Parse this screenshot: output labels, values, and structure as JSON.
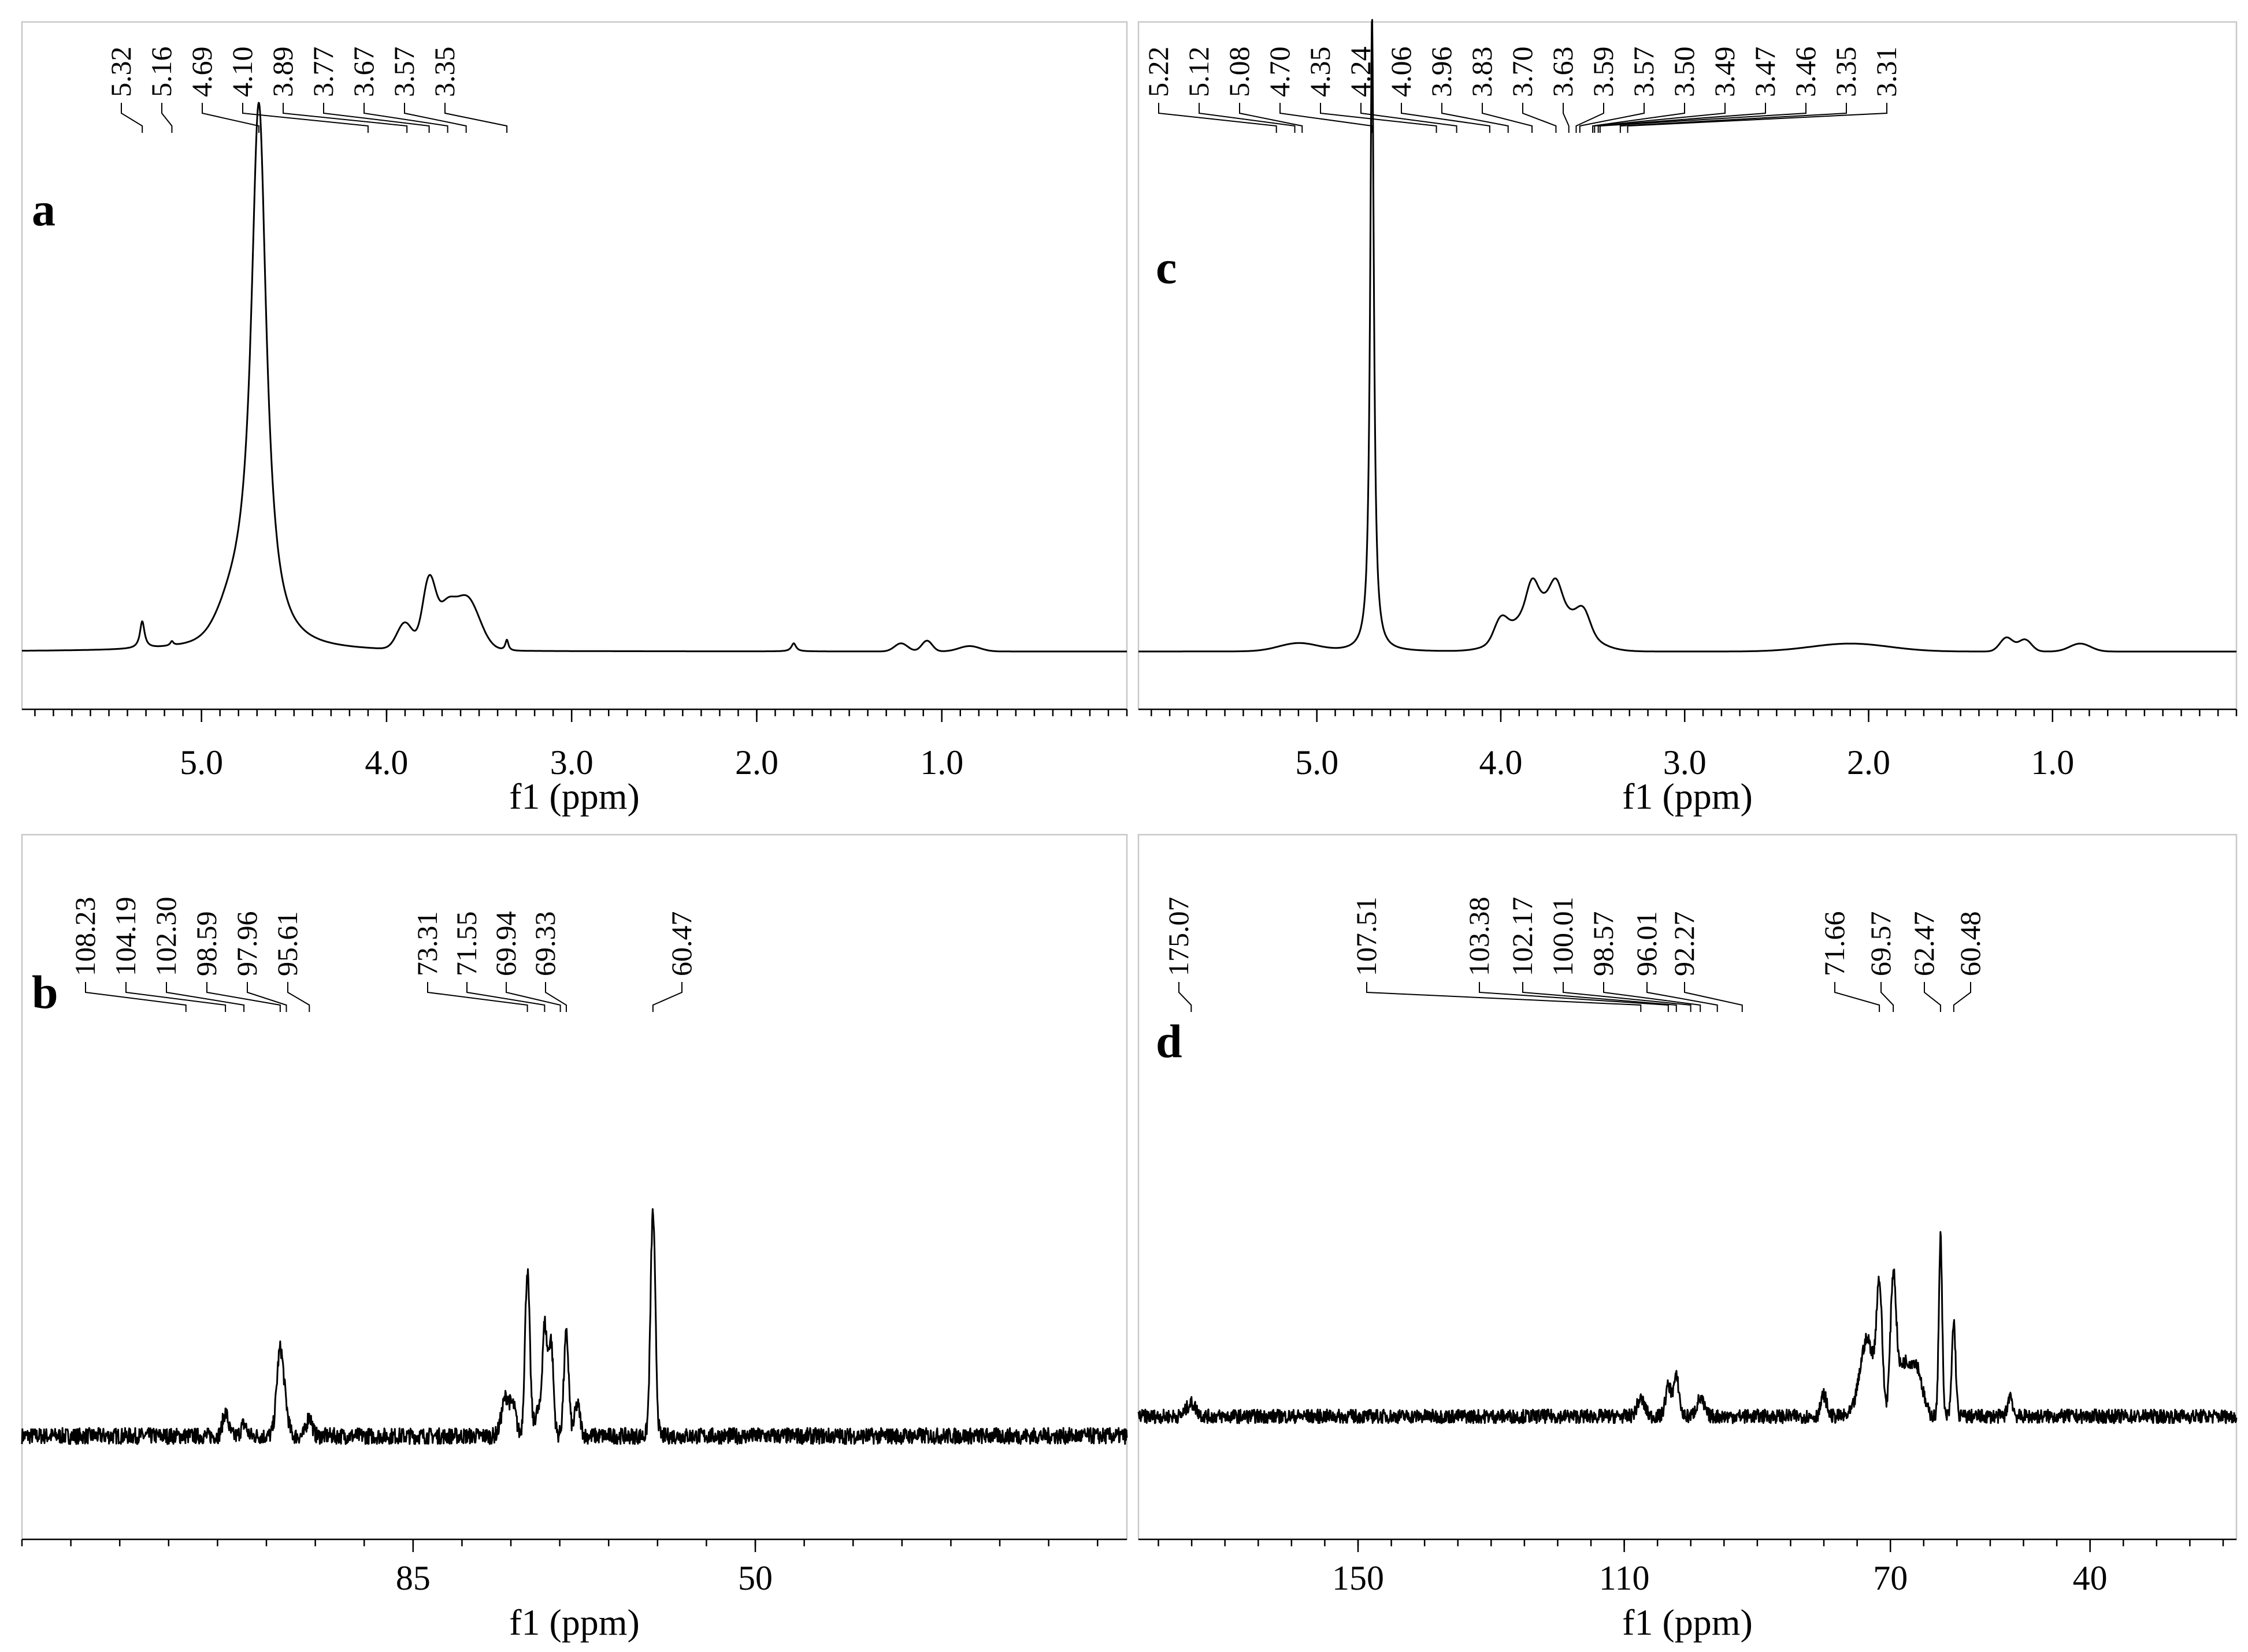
{
  "chart_data": [
    {
      "panel": "a",
      "type": "line",
      "xlabel": "f1 (ppm)",
      "xlim": [
        5.97,
        0.0
      ],
      "xticks": [
        "5.0",
        "4.0",
        "3.0",
        "2.0",
        "1.0"
      ],
      "xtick_values": [
        5.0,
        4.0,
        3.0,
        2.0,
        1.0
      ],
      "peak_labels": [
        "5.32",
        "5.16",
        "4.69",
        "4.10",
        "3.89",
        "3.77",
        "3.67",
        "3.57",
        "3.35"
      ],
      "peak_values": [
        5.32,
        5.16,
        4.69,
        4.1,
        3.89,
        3.77,
        3.67,
        3.57,
        3.35
      ]
    },
    {
      "panel": "b",
      "type": "line",
      "xlabel": "f1 (ppm)",
      "xlim": [
        125.0,
        12.0
      ],
      "xticks": [
        "85",
        "50"
      ],
      "xtick_values": [
        85,
        50
      ],
      "peak_labels": [
        "108.23",
        "104.19",
        "102.30",
        "98.59",
        "97.96",
        "95.61",
        "73.31",
        "71.55",
        "69.94",
        "69.33",
        "60.47"
      ],
      "peak_values": [
        108.23,
        104.19,
        102.3,
        98.59,
        97.96,
        95.61,
        73.31,
        71.55,
        69.94,
        69.33,
        60.47
      ]
    },
    {
      "panel": "c",
      "type": "line",
      "xlabel": "f1 (ppm)",
      "xlim": [
        5.97,
        0.0
      ],
      "xticks": [
        "5.0",
        "4.0",
        "3.0",
        "2.0",
        "1.0"
      ],
      "xtick_values": [
        5.0,
        4.0,
        3.0,
        2.0,
        1.0
      ],
      "peak_labels": [
        "5.22",
        "5.12",
        "5.08",
        "4.70",
        "4.35",
        "4.24",
        "4.06",
        "3.96",
        "3.83",
        "3.70",
        "3.63",
        "3.59",
        "3.57",
        "3.50",
        "3.49",
        "3.47",
        "3.46",
        "3.35",
        "3.31"
      ],
      "peak_values": [
        5.22,
        5.12,
        5.08,
        4.7,
        4.35,
        4.24,
        4.06,
        3.96,
        3.83,
        3.7,
        3.63,
        3.59,
        3.57,
        3.5,
        3.49,
        3.47,
        3.46,
        3.35,
        3.31
      ]
    },
    {
      "panel": "d",
      "type": "line",
      "xlabel": "f1 (ppm)",
      "xlim": [
        183.0,
        18.0
      ],
      "xticks": [
        "150",
        "110",
        "70",
        "40"
      ],
      "xtick_values": [
        150,
        110,
        70,
        40
      ],
      "peak_labels": [
        "175.07",
        "107.51",
        "103.38",
        "102.17",
        "100.01",
        "98.57",
        "96.01",
        "92.27",
        "71.66",
        "69.57",
        "62.47",
        "60.48"
      ],
      "peak_values": [
        175.07,
        107.51,
        103.38,
        102.17,
        100.01,
        98.57,
        96.01,
        92.27,
        71.66,
        69.57,
        62.47,
        60.48
      ]
    }
  ]
}
